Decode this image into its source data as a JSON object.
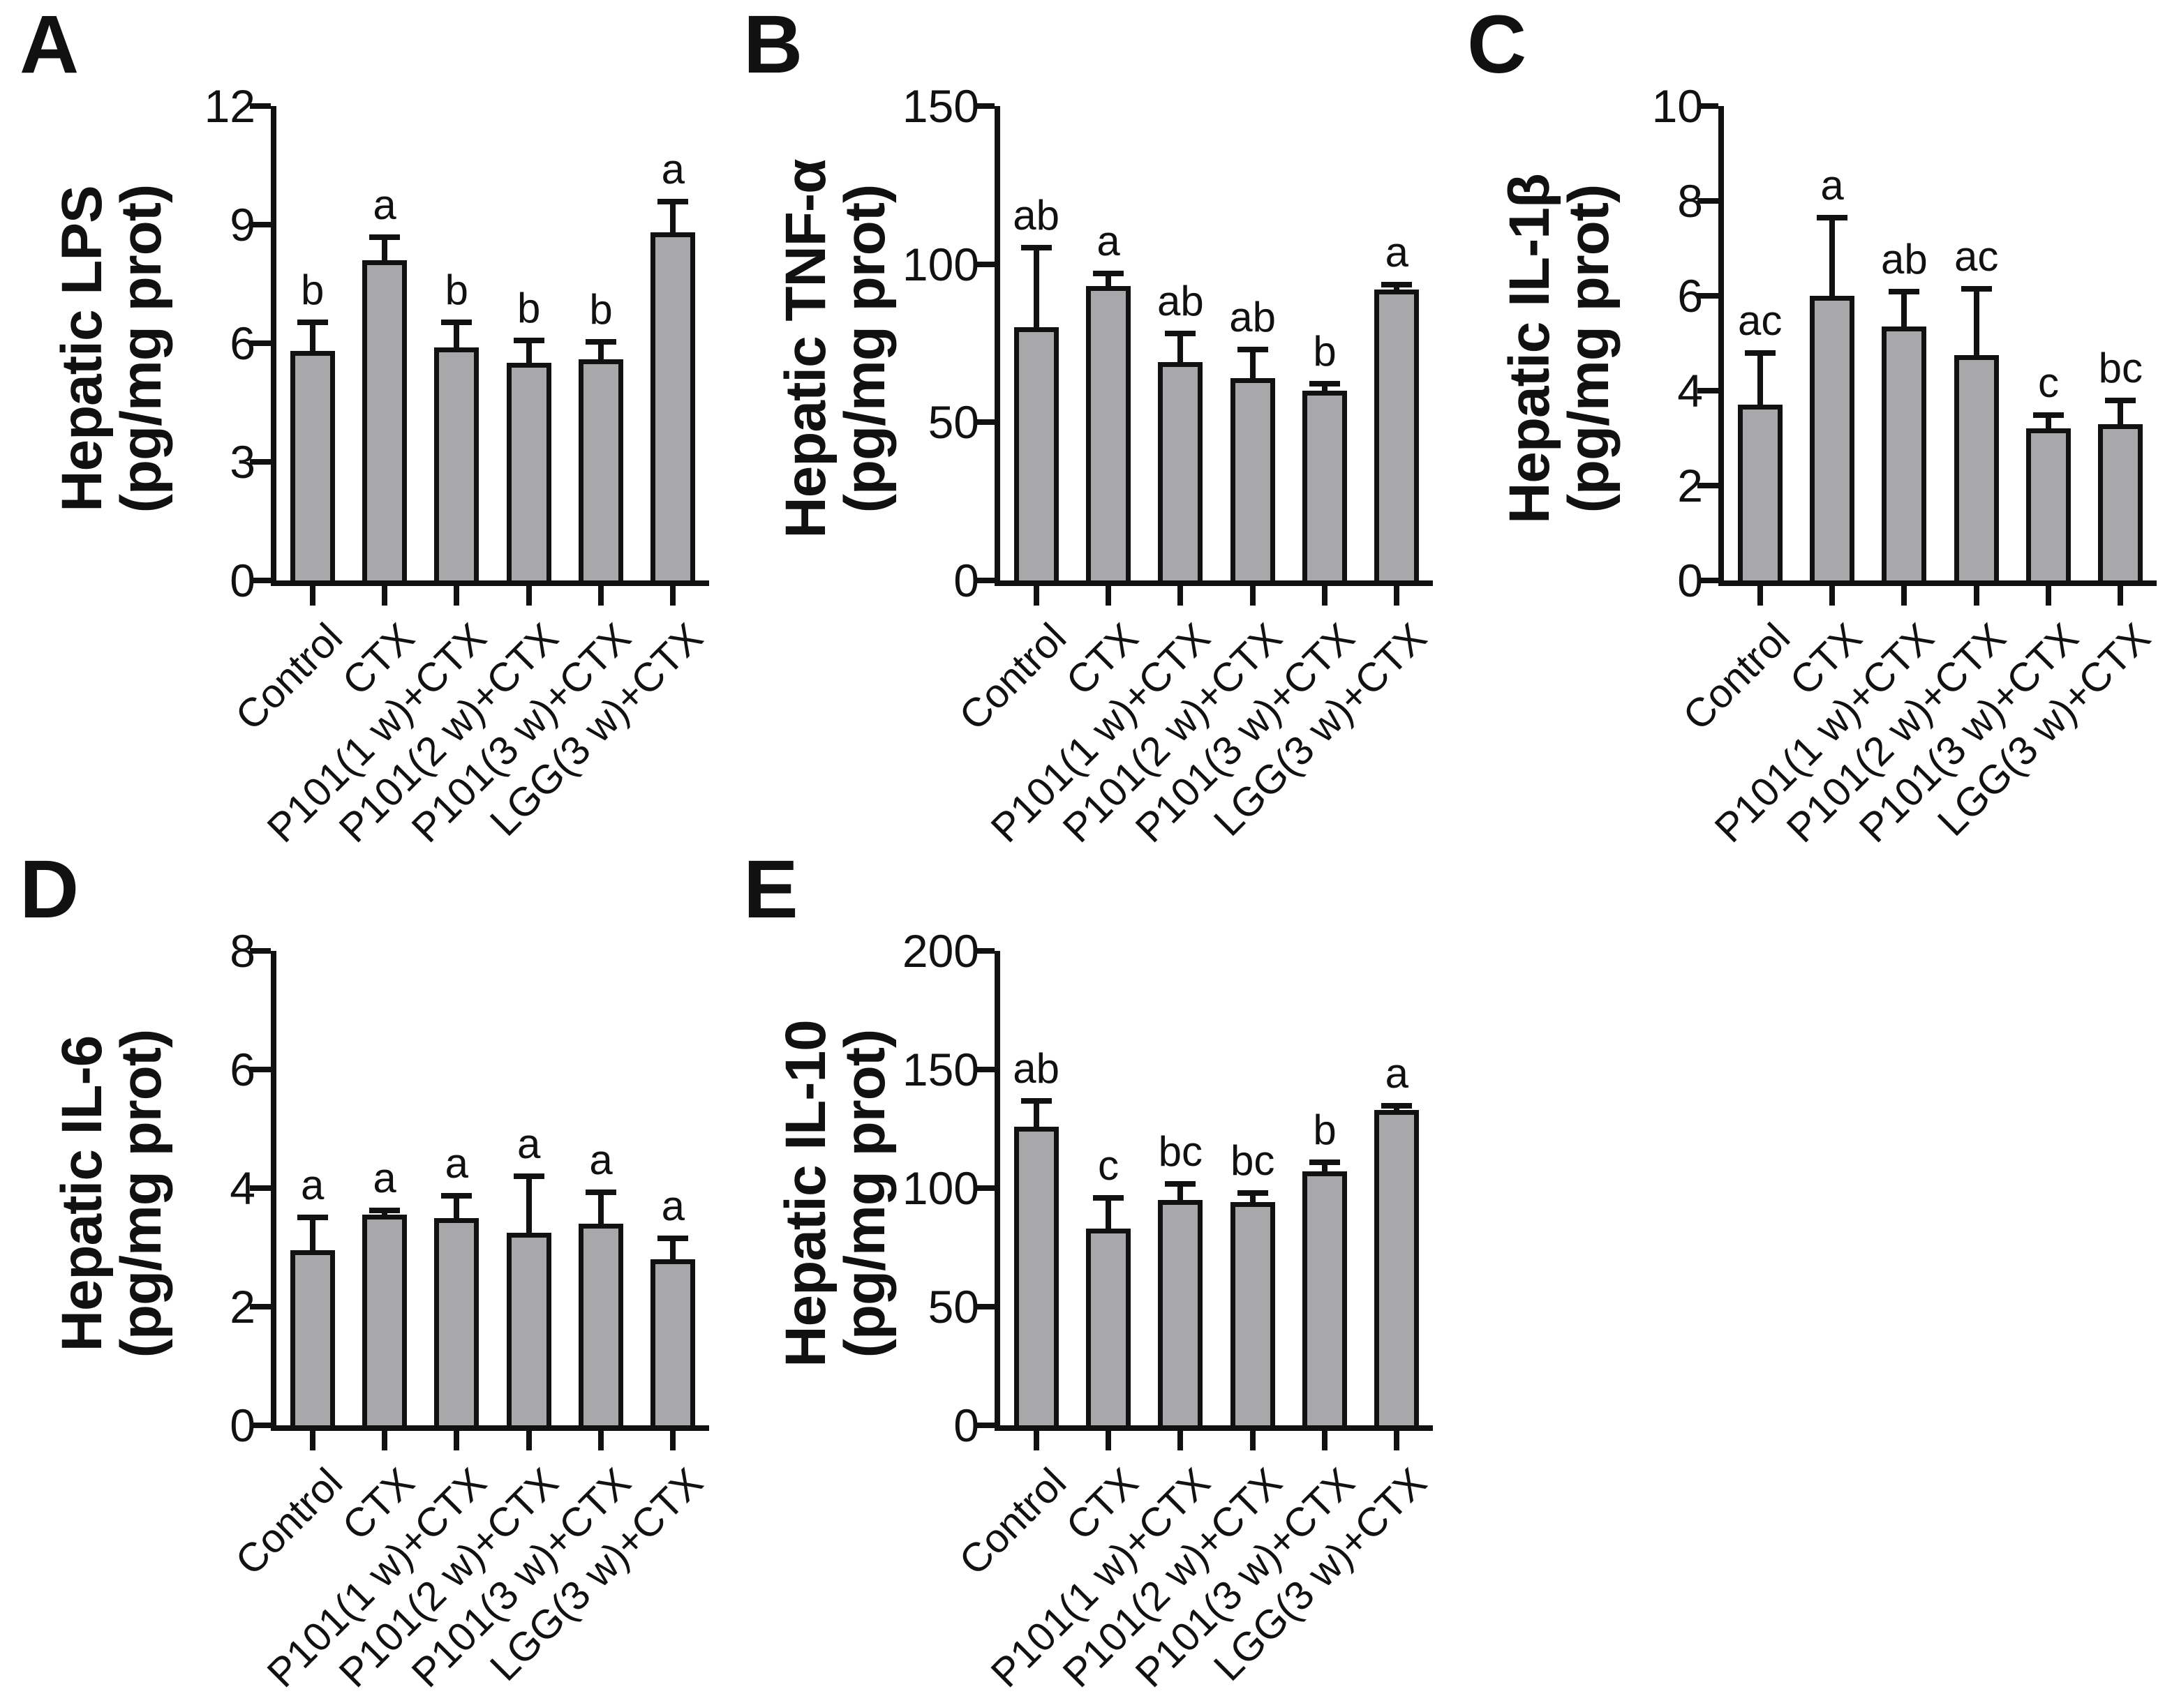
{
  "figure": {
    "background": "#ffffff",
    "description": "Five-panel bar chart figure of hepatic inflammation markers",
    "panel_letters": [
      "A",
      "B",
      "C",
      "D",
      "E"
    ]
  },
  "colors": {
    "background": "#ffffff",
    "bar_fill": "#a8a8ab",
    "bar_border": "#111111",
    "axis": "#111111",
    "text": "#111111"
  },
  "chart_data": [
    {
      "type": "bar",
      "panel_letter": "A",
      "title": "",
      "xlabel": "",
      "ylabel": "Hepatic LPS (pg/mg prot)",
      "ylabel_lines": [
        "Hepatic LPS",
        "(pg/mg prot)"
      ],
      "categories": [
        "Control",
        "CTX",
        "P101(1 w)+CTX",
        "P101(2 w)+CTX",
        "P101(3 w)+CTX",
        "LGG(3 w)+CTX"
      ],
      "values": [
        5.8,
        8.1,
        5.9,
        5.5,
        5.6,
        8.8
      ],
      "errors_upper": [
        0.8,
        0.65,
        0.7,
        0.65,
        0.5,
        0.85
      ],
      "sig_letters": [
        "b",
        "a",
        "b",
        "b",
        "b",
        "a"
      ],
      "ylim": [
        0,
        12
      ],
      "yticks": [
        0,
        3,
        6,
        9,
        12
      ],
      "grid": false,
      "legend": "none"
    },
    {
      "type": "bar",
      "panel_letter": "B",
      "title": "",
      "xlabel": "",
      "ylabel": "Hepatic TNF-α (pg/mg prot)",
      "ylabel_lines": [
        "Hepatic TNF-α",
        "(pg/mg prot)"
      ],
      "categories": [
        "Control",
        "CTX",
        "P101(1 w)+CTX",
        "P101(2 w)+CTX",
        "P101(3 w)+CTX",
        "LGG(3 w)+CTX"
      ],
      "values": [
        80,
        93,
        69,
        64,
        60,
        92
      ],
      "errors_upper": [
        26,
        5,
        10,
        10,
        3,
        2.5
      ],
      "sig_letters": [
        "ab",
        "a",
        "ab",
        "ab",
        "b",
        "a"
      ],
      "ylim": [
        0,
        150
      ],
      "yticks": [
        0,
        50,
        100,
        150
      ],
      "grid": false,
      "legend": "none"
    },
    {
      "type": "bar",
      "panel_letter": "C",
      "title": "",
      "xlabel": "",
      "ylabel": "Hepatic IL-1β (pg/mg prot)",
      "ylabel_lines": [
        "Hepatic IL-1β",
        "(pg/mg prot)"
      ],
      "categories": [
        "Control",
        "CTX",
        "P101(1 w)+CTX",
        "P101(2 w)+CTX",
        "P101(3 w)+CTX",
        "LGG(3 w)+CTX"
      ],
      "values": [
        3.7,
        6.0,
        5.35,
        4.75,
        3.2,
        3.3
      ],
      "errors_upper": [
        1.15,
        1.7,
        0.8,
        1.45,
        0.35,
        0.55
      ],
      "sig_letters": [
        "ac",
        "a",
        "ab",
        "ac",
        "c",
        "bc"
      ],
      "ylim": [
        0,
        10
      ],
      "yticks": [
        0,
        2,
        4,
        6,
        8,
        10
      ],
      "grid": false,
      "legend": "none"
    },
    {
      "type": "bar",
      "panel_letter": "D",
      "title": "",
      "xlabel": "",
      "ylabel": "Hepatic IL-6 (pg/mg prot)",
      "ylabel_lines": [
        "Hepatic IL-6",
        "(pg/mg prot)"
      ],
      "categories": [
        "Control",
        "CTX",
        "P101(1 w)+CTX",
        "P101(2 w)+CTX",
        "P101(3 w)+CTX",
        "LGG(3 w)+CTX"
      ],
      "values": [
        2.95,
        3.55,
        3.5,
        3.25,
        3.4,
        2.8
      ],
      "errors_upper": [
        0.6,
        0.12,
        0.42,
        1.0,
        0.58,
        0.4
      ],
      "sig_letters": [
        "a",
        "a",
        "a",
        "a",
        "a",
        "a"
      ],
      "ylim": [
        0,
        8
      ],
      "yticks": [
        0,
        2,
        4,
        6,
        8
      ],
      "grid": false,
      "legend": "none"
    },
    {
      "type": "bar",
      "panel_letter": "E",
      "title": "",
      "xlabel": "",
      "ylabel": "Hepatic IL-10 (pg/mg prot)",
      "ylabel_lines": [
        "Hepatic IL-10",
        "(pg/mg prot)"
      ],
      "categories": [
        "Control",
        "CTX",
        "P101(1 w)+CTX",
        "P101(2 w)+CTX",
        "P101(3 w)+CTX",
        "LGG(3 w)+CTX"
      ],
      "values": [
        126,
        83,
        95,
        94,
        107,
        133
      ],
      "errors_upper": [
        12,
        14,
        8,
        5,
        5,
        3
      ],
      "sig_letters": [
        "ab",
        "c",
        "bc",
        "bc",
        "b",
        "a"
      ],
      "ylim": [
        0,
        200
      ],
      "yticks": [
        0,
        50,
        100,
        150,
        200
      ],
      "grid": false,
      "legend": "none"
    }
  ]
}
